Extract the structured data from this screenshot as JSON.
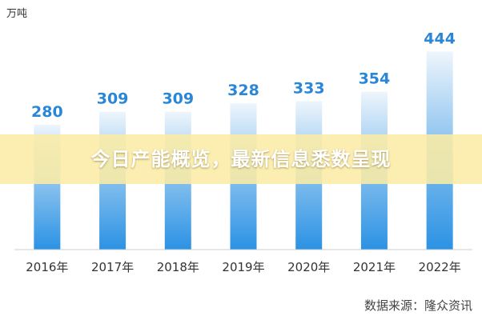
{
  "chart_data": {
    "type": "bar",
    "categories": [
      "2016年",
      "2017年",
      "2018年",
      "2019年",
      "2020年",
      "2021年",
      "2022年"
    ],
    "values": [
      280,
      309,
      309,
      328,
      333,
      354,
      444
    ],
    "ylabel": "万吨",
    "ylim": [
      0,
      520
    ],
    "grid": false,
    "colors": {
      "bar_top": "#eef5fc",
      "bar_bottom": "#2b92e4",
      "value_label": "#2a86d6",
      "axis": "#cccccc"
    }
  },
  "banner": {
    "text": "今日产能概览，最新信息悉数呈现"
  },
  "source": {
    "text": "数据来源：隆众资讯"
  }
}
